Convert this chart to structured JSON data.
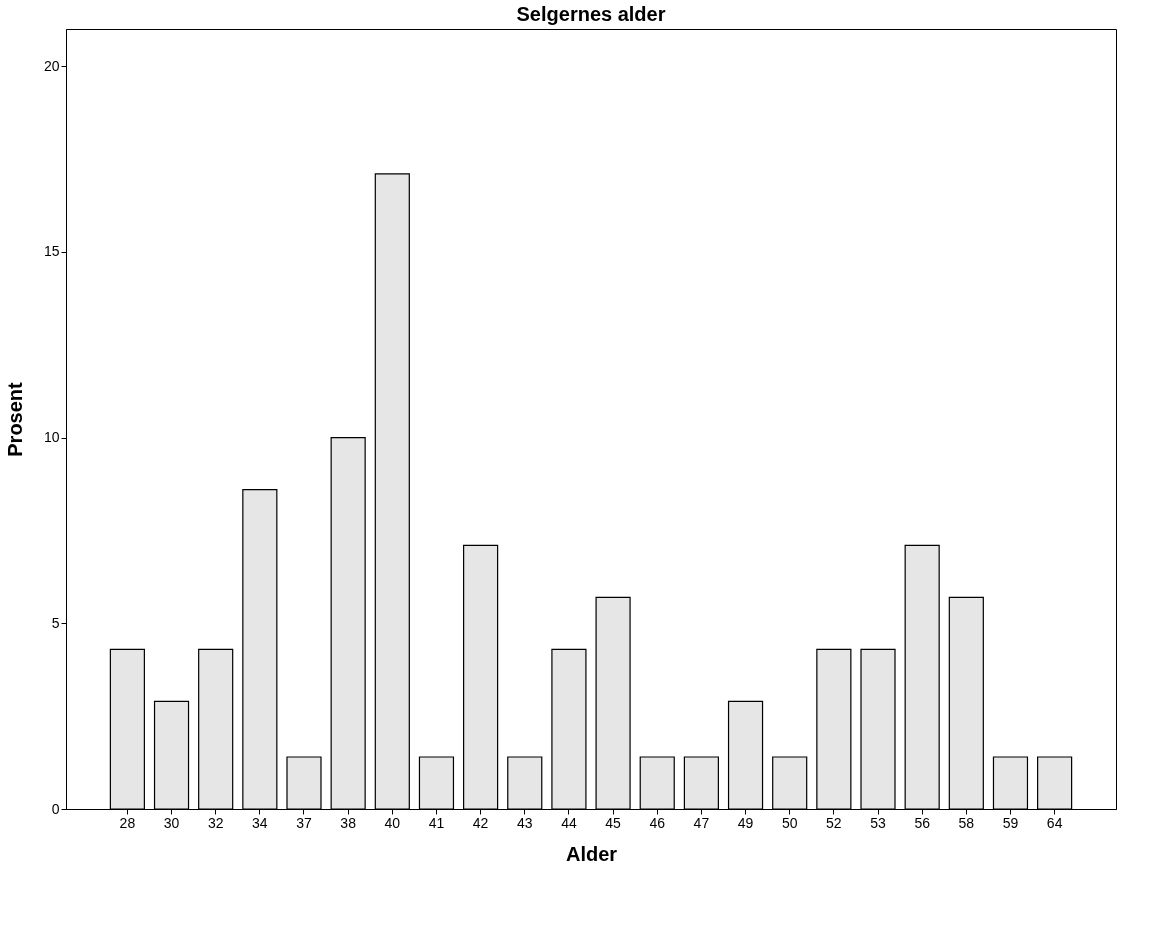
{
  "chart_data": {
    "type": "bar",
    "title": "Selgernes alder",
    "xlabel": "Alder",
    "ylabel": "Prosent",
    "categories": [
      "28",
      "30",
      "32",
      "34",
      "37",
      "38",
      "40",
      "41",
      "42",
      "43",
      "44",
      "45",
      "46",
      "47",
      "49",
      "50",
      "52",
      "53",
      "56",
      "58",
      "59",
      "64"
    ],
    "values": [
      4.3,
      2.9,
      4.3,
      8.6,
      1.4,
      10.0,
      17.1,
      1.4,
      7.1,
      1.4,
      4.3,
      5.7,
      1.4,
      1.4,
      2.9,
      1.4,
      4.3,
      4.3,
      7.1,
      5.7,
      1.4,
      1.4
    ],
    "color": "#e6e6e6",
    "ylim": [
      0,
      21
    ],
    "yticks": [
      0,
      5,
      10,
      15,
      20
    ],
    "grid": false
  }
}
